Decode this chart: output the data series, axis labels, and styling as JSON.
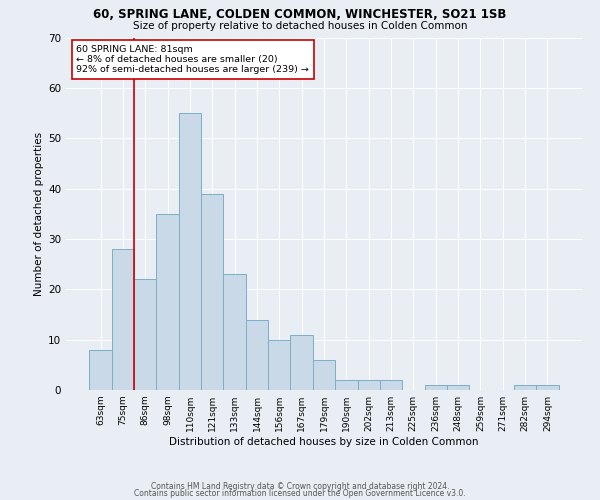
{
  "title1": "60, SPRING LANE, COLDEN COMMON, WINCHESTER, SO21 1SB",
  "title2": "Size of property relative to detached houses in Colden Common",
  "xlabel": "Distribution of detached houses by size in Colden Common",
  "ylabel": "Number of detached properties",
  "categories": [
    "63sqm",
    "75sqm",
    "86sqm",
    "98sqm",
    "110sqm",
    "121sqm",
    "133sqm",
    "144sqm",
    "156sqm",
    "167sqm",
    "179sqm",
    "190sqm",
    "202sqm",
    "213sqm",
    "225sqm",
    "236sqm",
    "248sqm",
    "259sqm",
    "271sqm",
    "282sqm",
    "294sqm"
  ],
  "values": [
    8,
    28,
    22,
    35,
    55,
    39,
    23,
    14,
    10,
    11,
    6,
    2,
    2,
    2,
    0,
    1,
    1,
    0,
    0,
    1,
    1
  ],
  "bar_color": "#c9d9e8",
  "bar_edge_color": "#7aafc8",
  "vline_x": 1.5,
  "vline_color": "#cc0000",
  "annotation_text": "60 SPRING LANE: 81sqm\n← 8% of detached houses are smaller (20)\n92% of semi-detached houses are larger (239) →",
  "annotation_box_color": "#ffffff",
  "annotation_box_edge": "#cc0000",
  "ylim": [
    0,
    70
  ],
  "yticks": [
    0,
    10,
    20,
    30,
    40,
    50,
    60,
    70
  ],
  "footer1": "Contains HM Land Registry data © Crown copyright and database right 2024.",
  "footer2": "Contains public sector information licensed under the Open Government Licence v3.0.",
  "background_color": "#e8eef4",
  "plot_background": "#e8eef4"
}
